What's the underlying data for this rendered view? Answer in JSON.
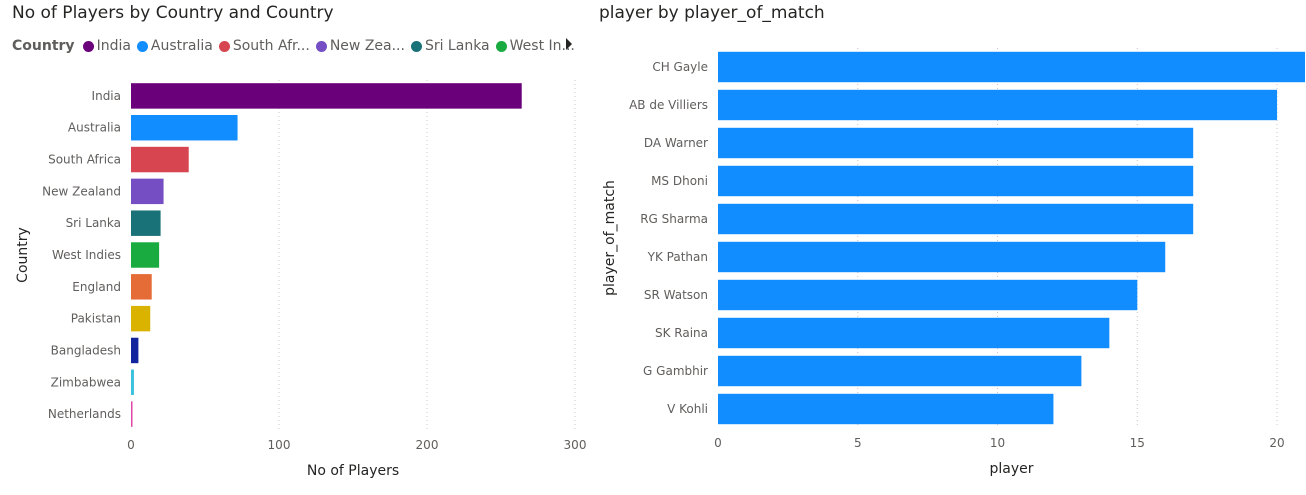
{
  "chart_data": [
    {
      "type": "bar",
      "orientation": "horizontal",
      "title": "No of Players by Country and Country",
      "xlabel": "No of Players",
      "ylabel": "Country",
      "legend": {
        "title": "Country",
        "placement": "top-left",
        "entries": [
          "India",
          "Australia",
          "South Afr...",
          "New Zea...",
          "Sri Lanka",
          "West In..."
        ]
      },
      "categories": [
        "India",
        "Australia",
        "South Africa",
        "New Zealand",
        "Sri Lanka",
        "West Indies",
        "England",
        "Pakistan",
        "Bangladesh",
        "Zimbabwea",
        "Netherlands"
      ],
      "values": [
        264,
        72,
        39,
        22,
        20,
        19,
        14,
        13,
        5,
        2,
        1
      ],
      "colors": [
        "#6b007b",
        "#118dff",
        "#d64550",
        "#744ec2",
        "#197278",
        "#1aab40",
        "#e66c37",
        "#d9b300",
        "#12239e",
        "#3cc1de",
        "#e044a7"
      ],
      "xlim": [
        0,
        300
      ],
      "xticks": [
        0,
        100,
        200,
        300
      ],
      "grid": true
    },
    {
      "type": "bar",
      "orientation": "horizontal",
      "title": "player by player_of_match",
      "xlabel": "player",
      "ylabel": "player_of_match",
      "categories": [
        "CH Gayle",
        "AB de Villiers",
        "DA Warner",
        "MS Dhoni",
        "RG Sharma",
        "YK Pathan",
        "SR Watson",
        "SK Raina",
        "G Gambhir",
        "V Kohli"
      ],
      "values": [
        21,
        20,
        17,
        17,
        17,
        16,
        15,
        14,
        13,
        12
      ],
      "color": "#118dff",
      "xlim": [
        0,
        21
      ],
      "xticks": [
        0,
        5,
        10,
        15,
        20
      ],
      "grid": true
    }
  ]
}
